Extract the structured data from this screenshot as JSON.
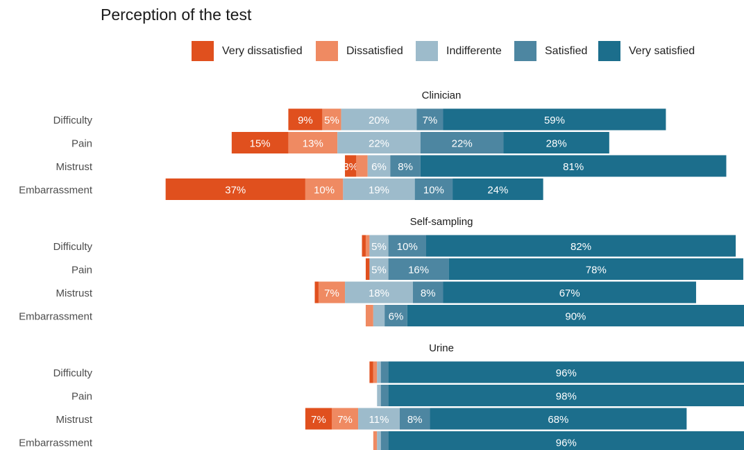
{
  "title": "Perception of the test",
  "legend": [
    {
      "label": "Very dissatisfied",
      "color": "#e0501e"
    },
    {
      "label": "Dissatisfied",
      "color": "#ef8a62"
    },
    {
      "label": "Indifferente",
      "color": "#9dbbcb"
    },
    {
      "label": "Satisfied",
      "color": "#4d86a1"
    },
    {
      "label": "Very satisfied",
      "color": "#1c6e8c"
    }
  ],
  "chart_data": {
    "type": "bar",
    "orientation": "horizontal",
    "stacked": "diverging",
    "title": "Perception of the test",
    "categories": [
      "Difficulty",
      "Pain",
      "Mistrust",
      "Embarrassment"
    ],
    "legend_position": "top",
    "grid": false,
    "levels": [
      "Very dissatisfied",
      "Dissatisfied",
      "Indifferente",
      "Satisfied",
      "Very satisfied"
    ],
    "panels": [
      {
        "name": "Clinician",
        "rows": [
          {
            "category": "Difficulty",
            "values": [
              9,
              5,
              20,
              7,
              59
            ],
            "labels": [
              "9%",
              "5%",
              "20%",
              "7%",
              "59%"
            ]
          },
          {
            "category": "Pain",
            "values": [
              15,
              13,
              22,
              22,
              28
            ],
            "labels": [
              "15%",
              "13%",
              "22%",
              "22%",
              "28%"
            ]
          },
          {
            "category": "Mistrust",
            "values": [
              3,
              3,
              6,
              8,
              81
            ],
            "labels": [
              "3%",
              "",
              "6%",
              "8%",
              "81%"
            ]
          },
          {
            "category": "Embarrassment",
            "values": [
              37,
              10,
              19,
              10,
              24
            ],
            "labels": [
              "37%",
              "10%",
              "19%",
              "10%",
              "24%"
            ]
          }
        ]
      },
      {
        "name": "Self-sampling",
        "rows": [
          {
            "category": "Difficulty",
            "values": [
              1,
              1,
              5,
              10,
              82
            ],
            "labels": [
              "",
              "",
              "5%",
              "10%",
              "82%"
            ]
          },
          {
            "category": "Pain",
            "values": [
              1,
              0,
              5,
              16,
              78
            ],
            "labels": [
              "",
              "",
              "5%",
              "16%",
              "78%"
            ]
          },
          {
            "category": "Mistrust",
            "values": [
              1,
              7,
              18,
              8,
              67
            ],
            "labels": [
              "",
              "7%",
              "18%",
              "8%",
              "67%"
            ]
          },
          {
            "category": "Embarrassment",
            "values": [
              0,
              2,
              3,
              6,
              90
            ],
            "labels": [
              "",
              "",
              "",
              "6%",
              "90%"
            ]
          }
        ]
      },
      {
        "name": "Urine",
        "rows": [
          {
            "category": "Difficulty",
            "values": [
              1,
              1,
              1,
              2,
              96
            ],
            "labels": [
              "",
              "",
              "",
              "",
              "96%"
            ]
          },
          {
            "category": "Pain",
            "values": [
              0,
              0,
              1,
              2,
              98
            ],
            "labels": [
              "",
              "",
              "",
              "",
              "98%"
            ]
          },
          {
            "category": "Mistrust",
            "values": [
              7,
              7,
              11,
              8,
              68
            ],
            "labels": [
              "7%",
              "7%",
              "11%",
              "8%",
              "68%"
            ]
          },
          {
            "category": "Embarrassment",
            "values": [
              0,
              1,
              1,
              2,
              96
            ],
            "labels": [
              "",
              "",
              "",
              "",
              "96%"
            ]
          }
        ]
      }
    ]
  }
}
